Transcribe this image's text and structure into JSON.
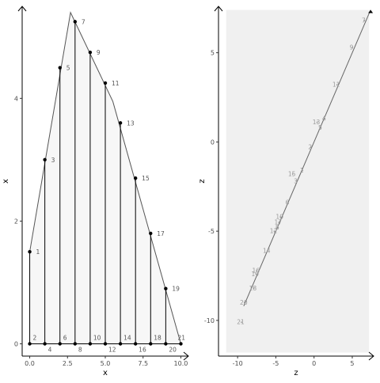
{
  "chart_data": [
    {
      "type": "line",
      "xlabel": "x",
      "ylabel": "x",
      "xlim": [
        -0.5,
        10.5
      ],
      "ylim": [
        -0.2,
        5.5
      ],
      "x_ticks": [
        0.0,
        2.5,
        5.0,
        7.5,
        10.0
      ],
      "x_tick_labels": [
        "0.0",
        "2.5",
        "5.0",
        "7.5",
        "10.0"
      ],
      "y_ticks": [
        0,
        2,
        4
      ],
      "y_tick_labels": [
        "0",
        "2",
        "4"
      ],
      "envelope": {
        "x": [
          0,
          2.7,
          5.5,
          10
        ],
        "y": [
          1.5,
          5.4,
          3.95,
          0
        ]
      },
      "stems": {
        "x": [
          0,
          1,
          2,
          3,
          4,
          5,
          6,
          7,
          8,
          9
        ],
        "y": [
          1.5,
          3.0,
          4.5,
          5.25,
          4.75,
          4.25,
          3.6,
          2.7,
          1.8,
          0.9
        ],
        "labels": [
          "1",
          "3",
          "5",
          "7",
          "9",
          "11",
          "13",
          "15",
          "17",
          "19"
        ]
      },
      "baseline": {
        "x": [
          0,
          1,
          2,
          3,
          4,
          5,
          6,
          7,
          8,
          9,
          10
        ],
        "y": [
          0,
          0,
          0,
          0,
          0,
          0,
          0,
          0,
          0,
          0,
          0
        ],
        "labels": [
          "2",
          "4",
          "6",
          "8",
          "10",
          "12",
          "14",
          "16",
          "18",
          "20",
          "21"
        ]
      },
      "grid": false
    },
    {
      "type": "line",
      "xlabel": "z",
      "ylabel": "z",
      "xlim": [
        -12.5,
        7.8
      ],
      "ylim": [
        -12.0,
        7.6
      ],
      "x_ticks": [
        -10,
        -5,
        0,
        5
      ],
      "x_tick_labels": [
        "-10",
        "-5",
        "0",
        "5"
      ],
      "y_ticks": [
        -10,
        -5,
        0,
        5
      ],
      "y_tick_labels": [
        "-10",
        "-5",
        "0",
        "5"
      ],
      "panel_fill": {
        "x": [
          -11.5,
          7.2
        ],
        "y": [
          -11.8,
          7.4
        ]
      },
      "line": {
        "x": [
          -9.2,
          7.4
        ],
        "y": [
          -9.2,
          7.4
        ]
      },
      "labeled_points": {
        "labels": [
          "1",
          "2",
          "3",
          "4",
          "5",
          "6",
          "7",
          "8",
          "9",
          "10",
          "11",
          "12",
          "13",
          "14",
          "15",
          "16",
          "17",
          "18",
          "19",
          "20",
          "21"
        ],
        "x": [
          -1.5,
          -0.4,
          -2.3,
          1.4,
          0.9,
          -3.4,
          6.6,
          -4.7,
          5.0,
          -4.4,
          3.0,
          -5.2,
          0.4,
          -6.1,
          -2.8,
          -7.5,
          -4.6,
          -7.9,
          -7.6,
          -9.1,
          -9.5
        ],
        "y": [
          -1.6,
          -0.3,
          -2.2,
          1.3,
          0.8,
          -3.4,
          6.8,
          -4.8,
          5.3,
          -4.2,
          3.2,
          -5.0,
          1.1,
          -6.1,
          -1.8,
          -7.2,
          -4.5,
          -8.2,
          -7.4,
          -9.0,
          -10.1
        ]
      },
      "grid": false
    }
  ]
}
